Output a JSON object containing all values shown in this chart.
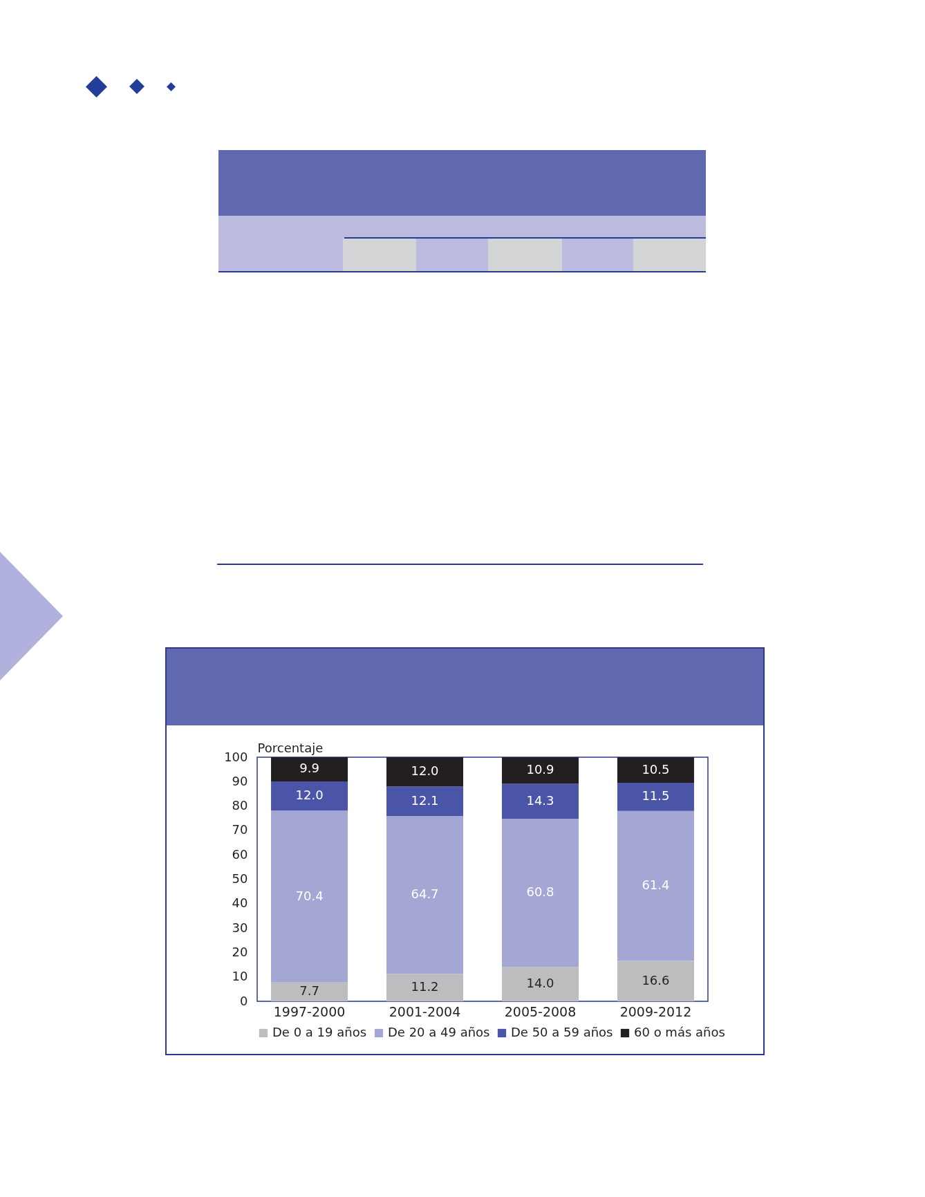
{
  "chart_data": {
    "type": "bar",
    "stacked": true,
    "ylabel": "Porcentaje",
    "categories": [
      "1997-2000",
      "2001-2004",
      "2005-2008",
      "2009-2012"
    ],
    "series": [
      {
        "name": "De 0 a 19 años",
        "color": "#bdbdbf",
        "values": [
          7.7,
          11.2,
          14.0,
          16.6
        ],
        "value_labels": [
          "7.7",
          "11.2",
          "14.0",
          "16.6"
        ]
      },
      {
        "name": "De 20 a 49 años",
        "color": "#a4a6d4",
        "values": [
          70.4,
          64.7,
          60.8,
          61.4
        ],
        "value_labels": [
          "70.4",
          "64.7",
          "60.8",
          "61.4"
        ]
      },
      {
        "name": "De 50 a 59 años",
        "color": "#4a55a8",
        "values": [
          12.0,
          12.1,
          14.3,
          11.5
        ],
        "value_labels": [
          "12.0",
          "12.1",
          "14.3",
          "11.5"
        ]
      },
      {
        "name": "60 o más años",
        "color": "#231f20",
        "values": [
          9.9,
          12.0,
          10.9,
          10.5
        ],
        "value_labels": [
          "9.9",
          "12.0",
          "10.9",
          "10.5"
        ]
      }
    ],
    "ylim": [
      0,
      100
    ],
    "yticks": [
      0,
      10,
      20,
      30,
      40,
      50,
      60,
      70,
      80,
      90,
      100
    ],
    "legend": "bottom"
  }
}
